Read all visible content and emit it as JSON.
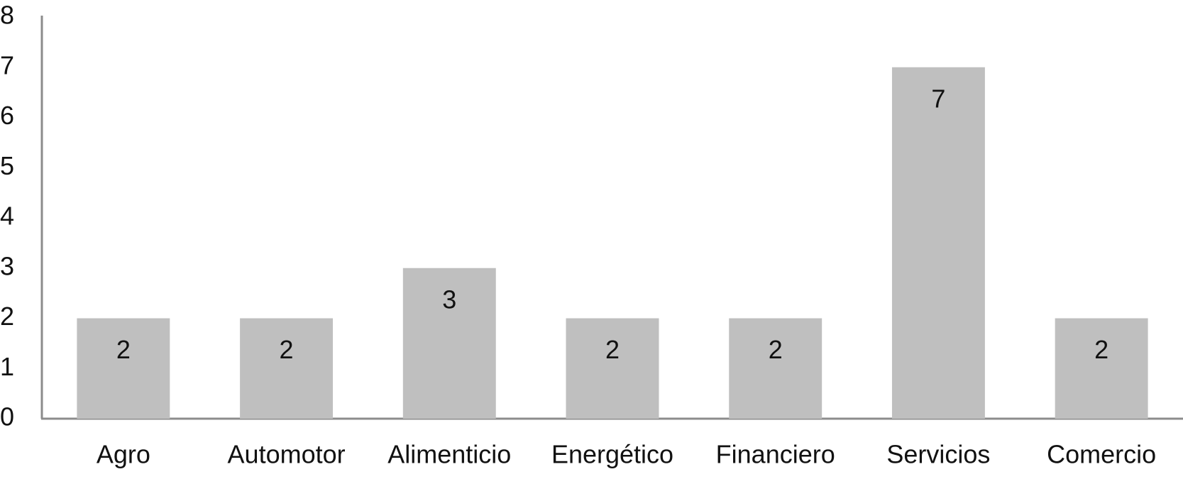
{
  "chart_data": {
    "type": "bar",
    "categories": [
      "Agro",
      "Automotor",
      "Alimenticio",
      "Energético",
      "Financiero",
      "Servicios",
      "Comercio"
    ],
    "values": [
      2,
      2,
      3,
      2,
      2,
      7,
      2
    ],
    "color": "#bfbfbf",
    "ylim": [
      0,
      8
    ],
    "yticks": [
      0,
      1,
      2,
      3,
      4,
      5,
      6,
      7,
      8
    ],
    "grid": false
  }
}
